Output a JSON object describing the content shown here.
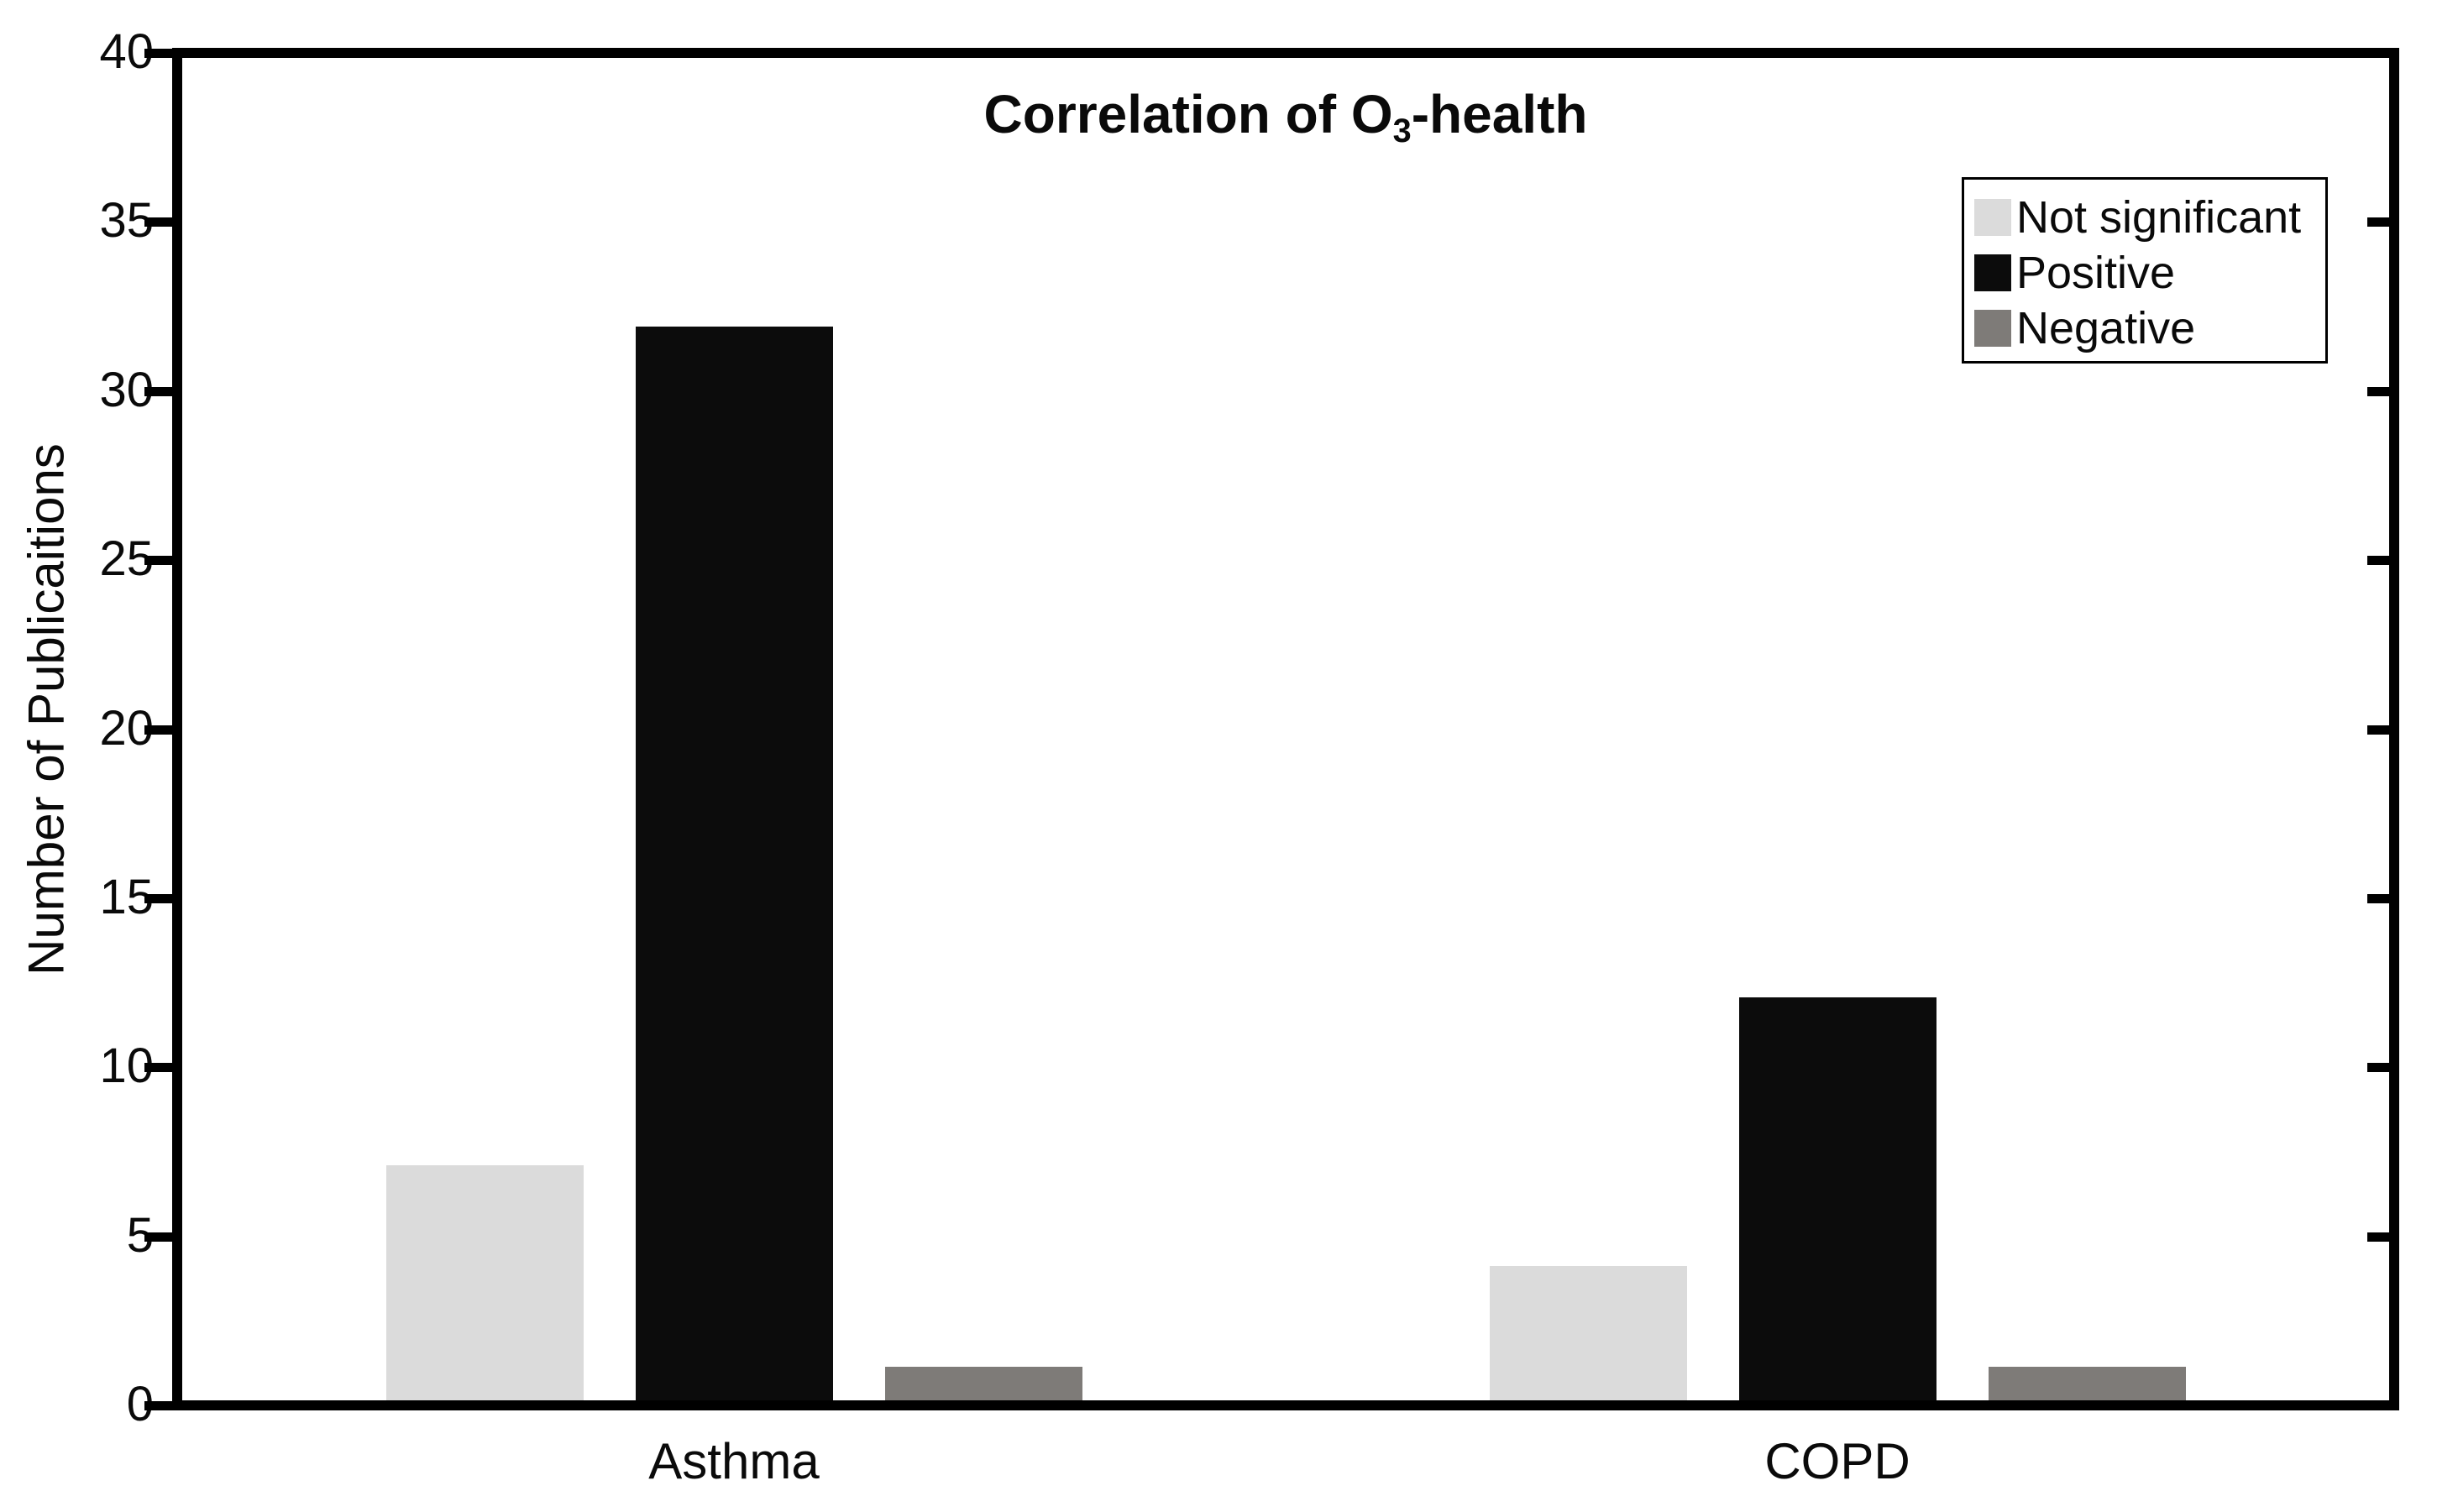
{
  "figure": {
    "title_prefix": "Correlation of O",
    "title_sub": "3",
    "title_suffix": "-health",
    "ylabel": "Number of Publicaitions"
  },
  "chart_data": {
    "type": "bar",
    "title": "Correlation of O3-health",
    "title_subscript_note": "3 in O3 is subscript",
    "categories": [
      "Asthma",
      "COPD"
    ],
    "series": [
      {
        "name": "Not significant",
        "color": "#DBDBDB",
        "values": [
          7,
          4
        ]
      },
      {
        "name": "Positive",
        "color": "#0C0C0C",
        "values": [
          32,
          12
        ]
      },
      {
        "name": "Negative",
        "color": "#7E7B78",
        "values": [
          1,
          1
        ]
      }
    ],
    "xlabel": "",
    "ylabel": "Number of Publicaitions",
    "ylim": [
      0,
      40
    ],
    "yticks": [
      0,
      5,
      10,
      15,
      20,
      25,
      30,
      35,
      40
    ],
    "grid": false,
    "legend_position": "upper-right",
    "legend_entries": [
      "Not significant",
      "Positive",
      "Negative"
    ],
    "frame": "full box, black, ticks outward on left axis and inward on right axis",
    "axis_color": "#000000",
    "background_color": "#ffffff"
  }
}
